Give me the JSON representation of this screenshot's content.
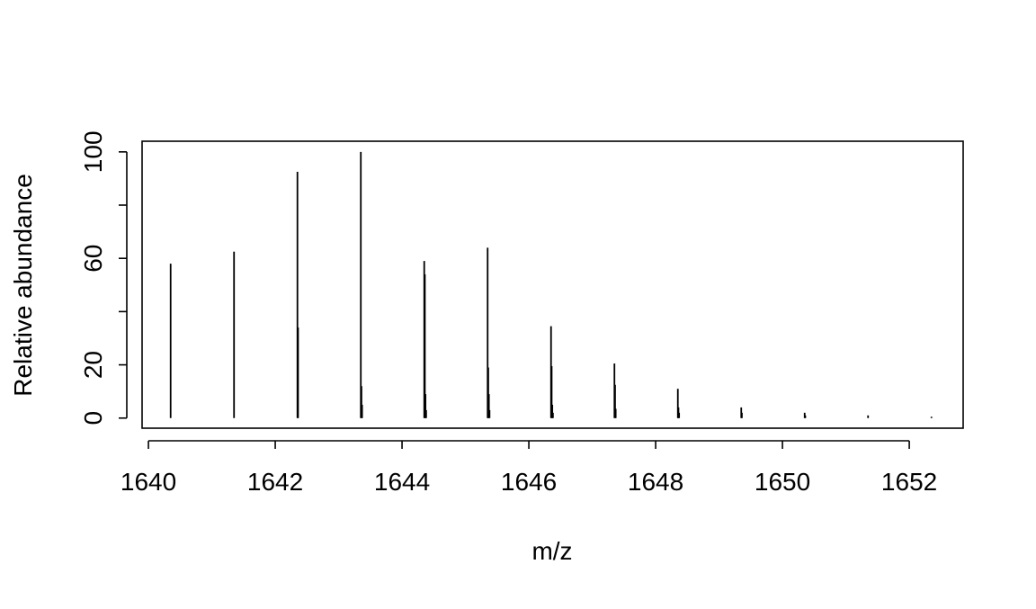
{
  "chart_data": {
    "type": "bar",
    "title": "",
    "xlabel": "m/z",
    "ylabel": "Relative abundance",
    "xlim": [
      1639.9,
      1652.85
    ],
    "ylim": [
      -3.8,
      104
    ],
    "x_ticks": [
      "1640",
      "1642",
      "1644",
      "1646",
      "1648",
      "1650",
      "1652"
    ],
    "y_ticks": [
      "0",
      "20",
      "60",
      "100"
    ],
    "y_minor_ticks": [
      40,
      80
    ],
    "grid": false,
    "legend": "none",
    "color": "#000000",
    "series": [
      {
        "values": [
          {
            "x": 1640.35,
            "y": 58
          },
          {
            "x": 1641.35,
            "y": 62.5
          },
          {
            "x": 1642.35,
            "y": 92.5
          },
          {
            "x": 1642.36,
            "y": 34
          },
          {
            "x": 1643.35,
            "y": 100
          },
          {
            "x": 1643.36,
            "y": 12
          },
          {
            "x": 1643.37,
            "y": 5
          },
          {
            "x": 1644.35,
            "y": 59
          },
          {
            "x": 1644.36,
            "y": 54
          },
          {
            "x": 1644.37,
            "y": 9
          },
          {
            "x": 1644.38,
            "y": 3
          },
          {
            "x": 1645.35,
            "y": 64
          },
          {
            "x": 1645.36,
            "y": 19
          },
          {
            "x": 1645.37,
            "y": 9
          },
          {
            "x": 1645.38,
            "y": 3
          },
          {
            "x": 1646.35,
            "y": 34.5
          },
          {
            "x": 1646.36,
            "y": 19.5
          },
          {
            "x": 1646.37,
            "y": 5
          },
          {
            "x": 1646.38,
            "y": 2
          },
          {
            "x": 1647.35,
            "y": 20.5
          },
          {
            "x": 1647.36,
            "y": 12.5
          },
          {
            "x": 1647.37,
            "y": 3.5
          },
          {
            "x": 1648.35,
            "y": 11
          },
          {
            "x": 1648.36,
            "y": 4
          },
          {
            "x": 1648.37,
            "y": 2
          },
          {
            "x": 1649.35,
            "y": 4
          },
          {
            "x": 1649.36,
            "y": 2
          },
          {
            "x": 1650.35,
            "y": 2
          },
          {
            "x": 1650.36,
            "y": 1
          },
          {
            "x": 1651.35,
            "y": 1
          },
          {
            "x": 1652.35,
            "y": 0.5
          }
        ]
      }
    ]
  }
}
